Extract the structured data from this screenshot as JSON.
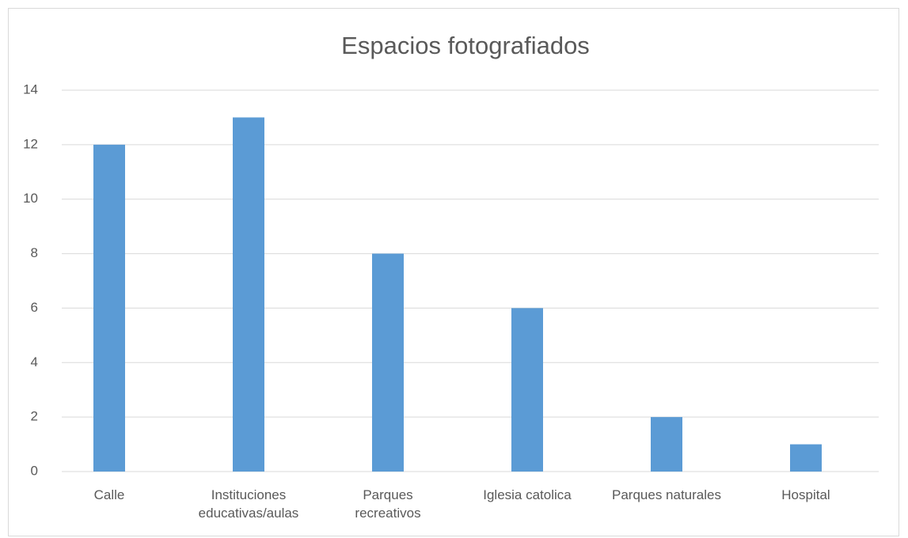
{
  "chart_data": {
    "type": "bar",
    "title": "Espacios fotografiados",
    "categories": [
      "Calle",
      "Instituciones educativas/aulas",
      "Parques recreativos",
      "Iglesia catolica",
      "Parques naturales",
      "Hospital"
    ],
    "values": [
      12,
      13,
      8,
      6,
      2,
      1
    ],
    "color": "#5b9bd5",
    "ylim": [
      0,
      14
    ],
    "yticks": [
      0,
      2,
      4,
      6,
      8,
      10,
      12,
      14
    ],
    "grid": true
  }
}
